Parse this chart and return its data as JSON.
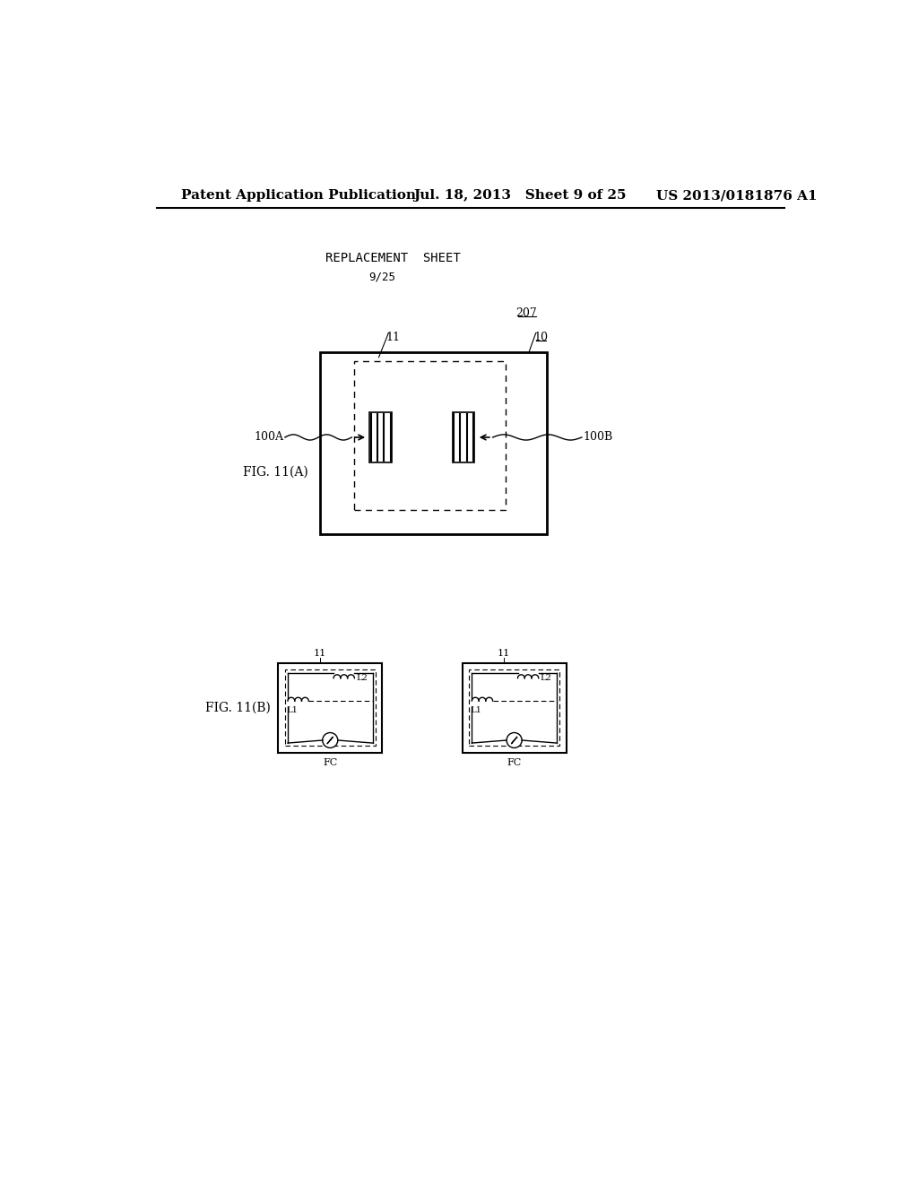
{
  "bg_color": "#ffffff",
  "header_left": "Patent Application Publication",
  "header_mid": "Jul. 18, 2013   Sheet 9 of 25",
  "header_right": "US 2013/0181876 A1",
  "replacement_sheet": "REPLACEMENT  SHEET",
  "page_num": "9/25",
  "fig11a_label": "FIG. 11(A)",
  "fig11b_label": "FIG. 11(B)",
  "label_207": "207",
  "label_10": "10",
  "label_11": "11",
  "label_100A": "100A",
  "label_100B": "100B",
  "label_11b": "11",
  "label_11b2": "11",
  "label_L1": "L1",
  "label_L2": "L2",
  "label_L1b": "L1",
  "label_L2b": "L2",
  "label_FC": "FC",
  "label_FCb": "FC"
}
